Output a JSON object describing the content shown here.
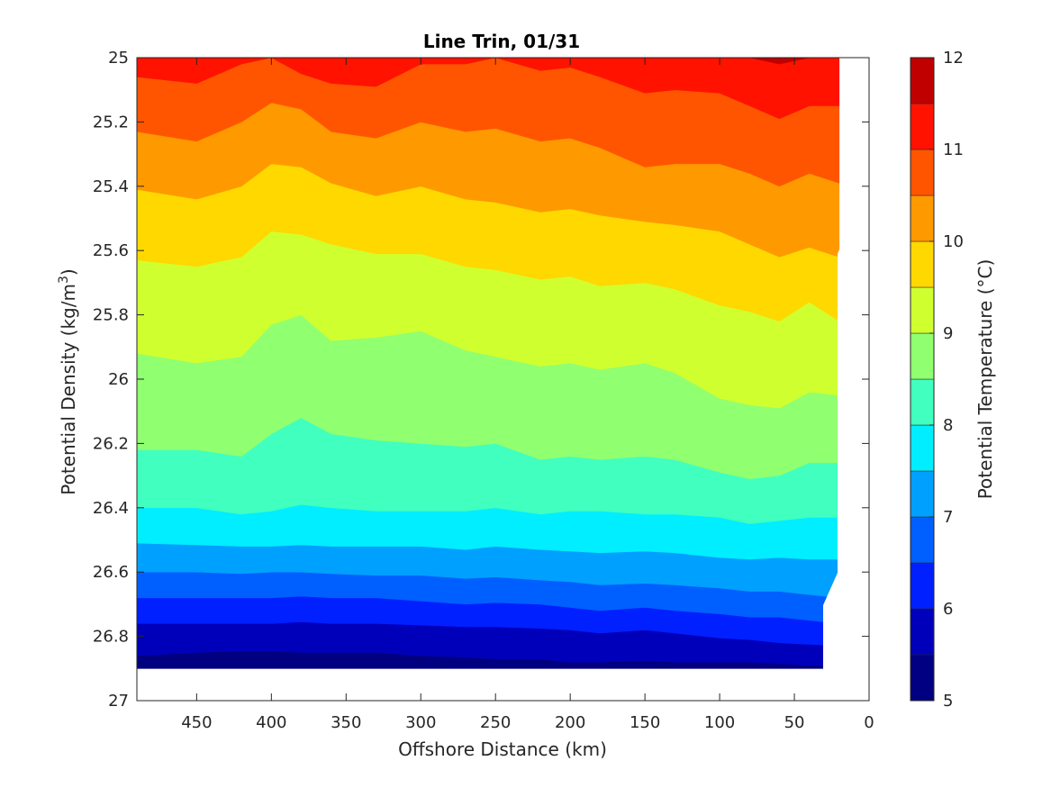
{
  "chart_data": {
    "type": "contour",
    "title": "Line Trin, 01/31",
    "xlabel": "Offshore Distance (km)",
    "ylabel": "Potential Density (kg/m",
    "ylabel_superscript": "3",
    "ylabel_suffix": ")",
    "colorbar_label": "Potential Temperature (°C)",
    "xlim": [
      490,
      0
    ],
    "x_reversed": true,
    "ylim": [
      25,
      27
    ],
    "y_reversed": true,
    "x_ticks": [
      450,
      400,
      350,
      300,
      250,
      200,
      150,
      100,
      50,
      0
    ],
    "y_ticks": [
      "25",
      "25.2",
      "25.4",
      "25.6",
      "25.8",
      "26",
      "26.2",
      "26.4",
      "26.6",
      "26.8",
      "27"
    ],
    "colorbar_range": [
      5,
      12
    ],
    "colorbar_ticks": [
      5,
      6,
      7,
      8,
      9,
      10,
      11,
      12
    ],
    "levels": [
      5,
      5.5,
      6,
      6.5,
      7,
      7.5,
      8,
      8.5,
      9,
      9.5,
      10,
      10.5,
      11,
      11.5,
      12
    ],
    "level_colors": [
      "#000080",
      "#0000bb",
      "#0020ff",
      "#0060ff",
      "#00a0ff",
      "#00eeff",
      "#40ffbf",
      "#90ff70",
      "#d0ff30",
      "#ffd800",
      "#ff9900",
      "#ff5500",
      "#ff1200",
      "#c00000"
    ],
    "x": [
      490,
      450,
      420,
      400,
      380,
      360,
      330,
      300,
      270,
      250,
      220,
      200,
      180,
      150,
      130,
      100,
      80,
      60,
      40,
      20
    ],
    "bottom_density": [
      26.9,
      26.9,
      26.9,
      26.9,
      26.9,
      26.9,
      26.9,
      26.9,
      26.9,
      26.9,
      26.9,
      26.9,
      26.9,
      26.9,
      26.9,
      26.9,
      26.9,
      26.9,
      26.9,
      26.9
    ],
    "isotherms": [
      {
        "t": 5.5,
        "y": [
          26.86,
          26.85,
          26.845,
          26.845,
          26.85,
          26.85,
          26.85,
          26.86,
          26.865,
          26.87,
          26.87,
          26.88,
          26.88,
          26.875,
          26.88,
          26.88,
          26.88,
          26.885,
          26.89,
          26.89
        ]
      },
      {
        "t": 6.0,
        "y": [
          26.76,
          26.76,
          26.76,
          26.76,
          26.755,
          26.76,
          26.76,
          26.765,
          26.77,
          26.77,
          26.775,
          26.78,
          26.79,
          26.78,
          26.79,
          26.805,
          26.81,
          26.82,
          26.825,
          26.83
        ]
      },
      {
        "t": 6.5,
        "y": [
          26.68,
          26.68,
          26.68,
          26.68,
          26.675,
          26.68,
          26.68,
          26.69,
          26.7,
          26.695,
          26.7,
          26.71,
          26.72,
          26.71,
          26.72,
          26.73,
          26.74,
          26.74,
          26.75,
          26.76
        ]
      },
      {
        "t": 7.0,
        "y": [
          26.6,
          26.6,
          26.605,
          26.6,
          26.6,
          26.605,
          26.61,
          26.61,
          26.62,
          26.615,
          26.625,
          26.63,
          26.64,
          26.635,
          26.64,
          26.65,
          26.66,
          26.66,
          26.67,
          26.68
        ]
      },
      {
        "t": 7.5,
        "y": [
          26.51,
          26.515,
          26.52,
          26.52,
          26.515,
          26.52,
          26.52,
          26.52,
          26.53,
          26.52,
          26.53,
          26.535,
          26.54,
          26.535,
          26.54,
          26.555,
          26.56,
          26.555,
          26.56,
          26.56
        ]
      },
      {
        "t": 8.0,
        "y": [
          26.4,
          26.4,
          26.42,
          26.41,
          26.39,
          26.4,
          26.41,
          26.41,
          26.41,
          26.4,
          26.42,
          26.41,
          26.41,
          26.42,
          26.42,
          26.43,
          26.45,
          26.44,
          26.43,
          26.43
        ]
      },
      {
        "t": 8.5,
        "y": [
          26.22,
          26.22,
          26.24,
          26.17,
          26.12,
          26.17,
          26.19,
          26.2,
          26.21,
          26.2,
          26.25,
          26.24,
          26.25,
          26.24,
          26.25,
          26.29,
          26.31,
          26.3,
          26.26,
          26.26
        ]
      },
      {
        "t": 9.0,
        "y": [
          25.92,
          25.95,
          25.93,
          25.83,
          25.8,
          25.88,
          25.87,
          25.85,
          25.91,
          25.93,
          25.96,
          25.95,
          25.97,
          25.95,
          25.98,
          26.06,
          26.08,
          26.09,
          26.04,
          26.05
        ]
      },
      {
        "t": 9.5,
        "y": [
          25.63,
          25.65,
          25.62,
          25.54,
          25.55,
          25.58,
          25.61,
          25.61,
          25.65,
          25.66,
          25.69,
          25.68,
          25.71,
          25.7,
          25.72,
          25.77,
          25.79,
          25.82,
          25.76,
          25.82
        ]
      },
      {
        "t": 10.0,
        "y": [
          25.41,
          25.44,
          25.4,
          25.33,
          25.34,
          25.39,
          25.43,
          25.4,
          25.44,
          25.45,
          25.48,
          25.47,
          25.49,
          25.51,
          25.52,
          25.54,
          25.58,
          25.62,
          25.59,
          25.62
        ]
      },
      {
        "t": 10.5,
        "y": [
          25.23,
          25.26,
          25.2,
          25.14,
          25.16,
          25.23,
          25.25,
          25.2,
          25.23,
          25.22,
          25.26,
          25.25,
          25.28,
          25.34,
          25.33,
          25.33,
          25.36,
          25.4,
          25.36,
          25.39
        ]
      },
      {
        "t": 11.0,
        "y": [
          25.06,
          25.08,
          25.02,
          25.0,
          25.05,
          25.08,
          25.09,
          25.02,
          25.02,
          25.0,
          25.04,
          25.03,
          25.06,
          25.11,
          25.1,
          25.11,
          25.15,
          25.19,
          25.15,
          25.15
        ]
      },
      {
        "t": 11.5,
        "y": [
          25.0,
          25.0,
          25.0,
          25.0,
          25.0,
          25.0,
          25.0,
          25.0,
          25.0,
          25.0,
          25.0,
          25.0,
          25.0,
          25.0,
          25.0,
          25.0,
          25.0,
          25.02,
          25.0,
          25.0
        ]
      }
    ],
    "grid": false,
    "colorbar_position": "right"
  }
}
